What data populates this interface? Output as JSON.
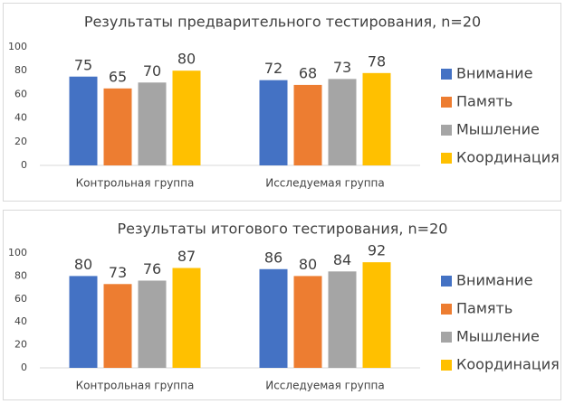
{
  "chart_data": [
    {
      "type": "bar",
      "title": "Результаты предварительного тестирования, n=20",
      "categories": [
        "Контрольная группа",
        "Исследуемая группа"
      ],
      "series": [
        {
          "name": "Внимание",
          "color": "#4472c4",
          "values": [
            75,
            72
          ]
        },
        {
          "name": "Память",
          "color": "#ed7d31",
          "values": [
            65,
            68
          ]
        },
        {
          "name": "Мышление",
          "color": "#a5a5a5",
          "values": [
            70,
            73
          ]
        },
        {
          "name": "Координация",
          "color": "#ffc000",
          "values": [
            80,
            78
          ]
        }
      ],
      "ylim": [
        0,
        100
      ],
      "yticks": [
        0,
        20,
        40,
        60,
        80,
        100
      ],
      "grid": false,
      "legend": "right"
    },
    {
      "type": "bar",
      "title": "Результаты итогового тестирования, n=20",
      "categories": [
        "Контрольная группа",
        "Исследуемая группа"
      ],
      "series": [
        {
          "name": "Внимание",
          "color": "#4472c4",
          "values": [
            80,
            86
          ]
        },
        {
          "name": "Память",
          "color": "#ed7d31",
          "values": [
            73,
            80
          ]
        },
        {
          "name": "Мышление",
          "color": "#a5a5a5",
          "values": [
            76,
            84
          ]
        },
        {
          "name": "Координация",
          "color": "#ffc000",
          "values": [
            87,
            92
          ]
        }
      ],
      "ylim": [
        0,
        100
      ],
      "yticks": [
        0,
        20,
        40,
        60,
        80,
        100
      ],
      "grid": false,
      "legend": "right"
    }
  ]
}
